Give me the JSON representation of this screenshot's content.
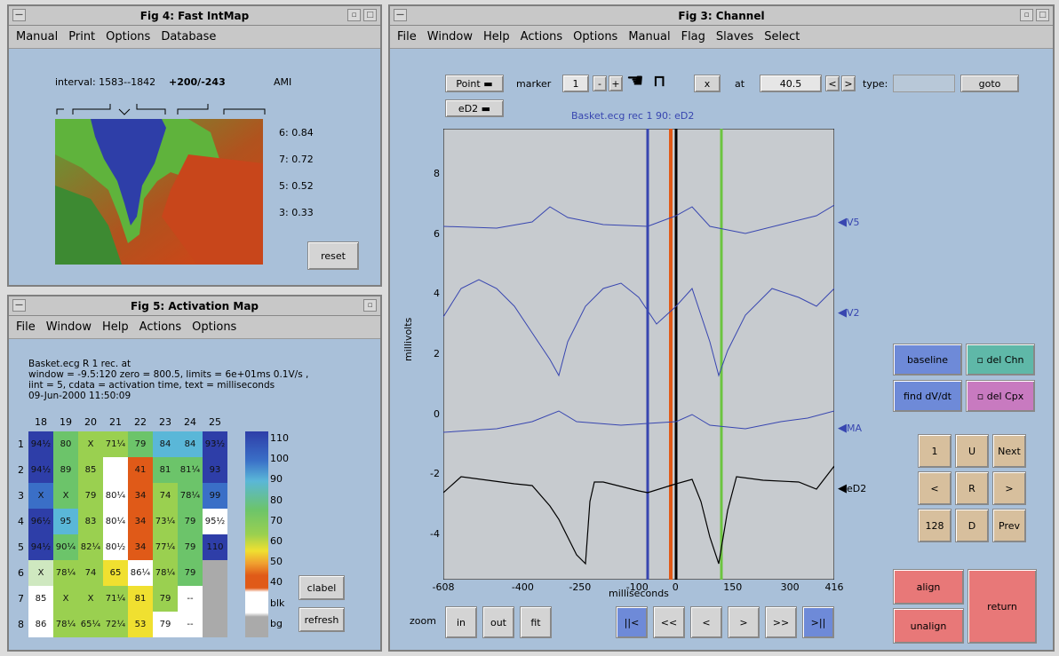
{
  "fig4": {
    "title": "Fig 4: Fast IntMap",
    "menu": [
      "Manual",
      "Print",
      "Options",
      "Database"
    ],
    "interval": "interval: 1583--1842",
    "range": "+200/-243",
    "ami": "AMI",
    "levels": [
      "6: 0.84",
      "7: 0.72",
      "5: 0.52",
      "3: 0.33"
    ],
    "reset": "reset"
  },
  "fig5": {
    "title": "Fig 5: Activation Map",
    "menu": [
      "File",
      "Window",
      "Help",
      "Actions",
      "Options"
    ],
    "info": [
      "Basket.ecg R 1  rec. at",
      "window = -9.5:120  zero = 800.5, limits = 6e+01ms 0.1V/s ,",
      "iint = 5, cdata = activation time, text = milliseconds",
      "09-Jun-2000 11:50:09"
    ],
    "cols": [
      "18",
      "19",
      "20",
      "21",
      "22",
      "23",
      "24",
      "25"
    ],
    "rows": [
      "1",
      "2",
      "3",
      "4",
      "5",
      "6",
      "7",
      "8"
    ],
    "cells": [
      [
        "94½",
        "80",
        "X",
        "71¼",
        "79",
        "84",
        "84",
        "93½"
      ],
      [
        "94½",
        "89",
        "85",
        "",
        "41",
        "81",
        "81¼",
        "93"
      ],
      [
        "X",
        "X",
        "79",
        "80¼",
        "34",
        "74",
        "78¼",
        "99"
      ],
      [
        "96½",
        "95",
        "83",
        "80¼",
        "34",
        "73¼",
        "79",
        "95½"
      ],
      [
        "94½",
        "90¼",
        "82¼",
        "80½",
        "34",
        "77¼",
        "79",
        "110"
      ],
      [
        "X",
        "78¼",
        "74",
        "65",
        "86¼",
        "78¼",
        "79",
        ""
      ],
      [
        "85",
        "X",
        "X",
        "71¼",
        "81",
        "79",
        "--",
        ""
      ],
      [
        "86",
        "78¼",
        "65¼",
        "72¼",
        "53",
        "79",
        "--",
        ""
      ]
    ],
    "scale": [
      "110",
      "100",
      "90",
      "80",
      "70",
      "60",
      "50",
      "40",
      "blk",
      "bg"
    ],
    "clabel": "clabel",
    "refresh": "refresh"
  },
  "fig3": {
    "title": "Fig 3: Channel",
    "menu": [
      "File",
      "Window",
      "Help",
      "Actions",
      "Options",
      "Manual",
      "Flag",
      "Slaves",
      "Select"
    ],
    "point": "Point",
    "marker": "marker",
    "marker_val": "1",
    "minus": "-",
    "plus": "+",
    "x": "x",
    "at": "at",
    "at_val": "40.5",
    "lt": "<",
    "gt": ">",
    "type": "type:",
    "goto": "goto",
    "ed2": "eD2",
    "plot_title": "Basket.ecg  rec 1   90: eD2",
    "ylabel": "millivolts",
    "xlabel": "milliseconds",
    "yticks": [
      "8",
      "6",
      "4",
      "2",
      "0",
      "-2",
      "-4"
    ],
    "xticks": [
      "-608",
      "-400",
      "-250",
      "-100",
      "0",
      "150",
      "300",
      "416"
    ],
    "channels": [
      "V5",
      "V2",
      "MA",
      "eD2"
    ],
    "zoom": "zoom",
    "in": "in",
    "out": "out",
    "fit": "fit",
    "nav": [
      "||<",
      "<<",
      "<",
      ">",
      ">>",
      ">||"
    ],
    "baseline": "baseline",
    "del_chn": "del Chn",
    "find": "find dV/dt",
    "del_cpx": "del Cpx",
    "keys": [
      "1",
      "U",
      "Next",
      "<",
      "R",
      ">",
      "128",
      "D",
      "Prev"
    ],
    "align": "align",
    "unalign": "unalign",
    "return": "return"
  }
}
